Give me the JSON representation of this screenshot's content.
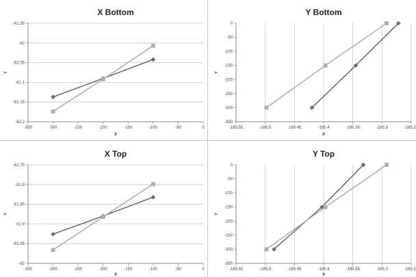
{
  "colors": {
    "series_dark": "#6e6e6e",
    "series_light": "#b0b0b0",
    "gridline": "#c6c6c6",
    "axis": "#8a8a8a",
    "divider": "#c8c8c8"
  },
  "chart_data": [
    {
      "type": "line",
      "title": "X Bottom",
      "xlabel": "X",
      "ylabel": "Y",
      "xlim": [
        -350,
        0
      ],
      "ylim": [
        -62.2,
        -61.95
      ],
      "x_ticks": [
        -350,
        -300,
        -250,
        -200,
        -150,
        -100,
        -50,
        0
      ],
      "x_tick_labels": [
        "-350",
        "-300",
        "-250",
        "-200",
        "-150",
        "-100",
        "-50",
        "0"
      ],
      "y_ticks": [
        -61.95,
        -62,
        -62.05,
        -62.1,
        -62.15,
        -62.2
      ],
      "y_tick_labels": [
        "-61.95",
        "-62",
        "-62.05",
        "-62.1",
        "-62.15",
        "-62.2"
      ],
      "grid": "horizontal",
      "series": [
        {
          "marker": "diamond",
          "color": "#6e6e6e",
          "points": [
            [
              -300,
              -62.137
            ],
            [
              -200,
              -62.09
            ],
            [
              -100,
              -62.042
            ]
          ]
        },
        {
          "marker": "square",
          "color": "#b0b0b0",
          "points": [
            [
              -300,
              -62.174
            ],
            [
              -200,
              -62.092
            ],
            [
              -100,
              -62.007
            ]
          ]
        }
      ]
    },
    {
      "type": "line",
      "title": "Y Bottom",
      "xlabel": "X",
      "ylabel": "Y",
      "xlim": [
        -185.55,
        -185.25
      ],
      "ylim": [
        -350,
        0
      ],
      "x_ticks": [
        -185.55,
        -185.5,
        -185.45,
        -185.4,
        -185.35,
        -185.3,
        -185.25
      ],
      "x_tick_labels": [
        "-185.55",
        "-185.5",
        "-185.45",
        "-185.4",
        "-185.35",
        "-185.3",
        "-185.25"
      ],
      "y_ticks": [
        0,
        -50,
        -100,
        -150,
        -200,
        -250,
        -300,
        -350
      ],
      "y_tick_labels": [
        "0",
        "-50",
        "-100",
        "-150",
        "-200",
        "-250",
        "-300",
        "-350"
      ],
      "grid": "vertical",
      "series": [
        {
          "marker": "diamond",
          "color": "#6e6e6e",
          "points": [
            [
              -185.42,
              -300
            ],
            [
              -185.345,
              -150
            ],
            [
              -185.272,
              0
            ]
          ]
        },
        {
          "marker": "square",
          "color": "#b0b0b0",
          "points": [
            [
              -185.498,
              -300
            ],
            [
              -185.397,
              -150
            ],
            [
              -185.292,
              0
            ]
          ]
        }
      ]
    },
    {
      "type": "line",
      "title": "X Top",
      "xlabel": "X",
      "ylabel": "Y",
      "xlim": [
        -350,
        0
      ],
      "ylim": [
        -62,
        -61.75
      ],
      "x_ticks": [
        -350,
        -300,
        -250,
        -200,
        -150,
        -100,
        -50,
        0
      ],
      "x_tick_labels": [
        "-350",
        "-300",
        "-250",
        "-200",
        "-150",
        "-100",
        "-50",
        "0"
      ],
      "y_ticks": [
        -61.75,
        -61.8,
        -61.85,
        -61.9,
        -61.95,
        -62
      ],
      "y_tick_labels": [
        "-61.75",
        "-61.8",
        "-61.85",
        "-61.9",
        "-61.95",
        "-62"
      ],
      "grid": "horizontal",
      "series": [
        {
          "marker": "diamond",
          "color": "#6e6e6e",
          "points": [
            [
              -300,
              -61.926
            ],
            [
              -200,
              -61.88
            ],
            [
              -100,
              -61.832
            ]
          ]
        },
        {
          "marker": "square",
          "color": "#b0b0b0",
          "points": [
            [
              -300,
              -61.966
            ],
            [
              -200,
              -61.882
            ],
            [
              -100,
              -61.799
            ]
          ]
        }
      ]
    },
    {
      "type": "line",
      "title": "Y Top",
      "xlabel": "X",
      "ylabel": "Y",
      "xlim": [
        -185.55,
        -185.25
      ],
      "ylim": [
        -350,
        0
      ],
      "x_ticks": [
        -185.55,
        -185.5,
        -185.45,
        -185.4,
        -185.35,
        -185.3,
        -185.25
      ],
      "x_tick_labels": [
        "-185.55",
        "-185.5",
        "-185.45",
        "-185.4",
        "-185.35",
        "-185.3",
        "-185.25"
      ],
      "y_ticks": [
        0,
        -50,
        -100,
        -150,
        -200,
        -250,
        -300,
        -350
      ],
      "y_tick_labels": [
        "0",
        "-50",
        "-100",
        "-150",
        "-200",
        "-250",
        "-300",
        "-350"
      ],
      "grid": "vertical",
      "series": [
        {
          "marker": "diamond",
          "color": "#6e6e6e",
          "points": [
            [
              -185.485,
              -300
            ],
            [
              -185.403,
              -150
            ],
            [
              -185.332,
              0
            ]
          ]
        },
        {
          "marker": "square",
          "color": "#b0b0b0",
          "points": [
            [
              -185.498,
              -300
            ],
            [
              -185.397,
              -150
            ],
            [
              -185.292,
              0
            ]
          ]
        }
      ]
    }
  ]
}
